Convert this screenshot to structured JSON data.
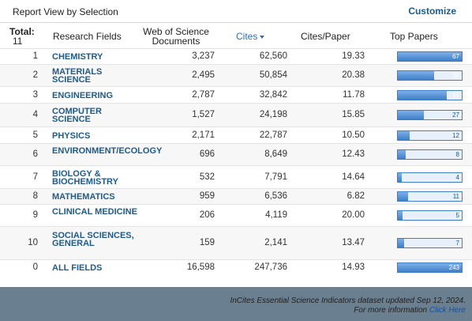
{
  "header": {
    "title": "Report View by Selection",
    "customize_label": "Customize"
  },
  "columns": {
    "total_label": "Total:",
    "total_count": "11",
    "research_fields": "Research Fields",
    "wos_documents": "Web of Science Documents",
    "cites": "Cites",
    "cites_per_paper": "Cites/Paper",
    "top_papers": "Top Papers"
  },
  "rows": [
    {
      "rank": "1",
      "field": "CHEMISTRY",
      "docs": "3,237",
      "cites": "62,560",
      "cpp": "19.33",
      "top": 67
    },
    {
      "rank": "2",
      "field": "MATERIALS SCIENCE",
      "docs": "2,495",
      "cites": "50,854",
      "cpp": "20.38",
      "top": 38
    },
    {
      "rank": "3",
      "field": "ENGINEERING",
      "docs": "2,787",
      "cites": "32,842",
      "cpp": "11.78",
      "top": 51
    },
    {
      "rank": "4",
      "field": "COMPUTER SCIENCE",
      "docs": "1,527",
      "cites": "24,198",
      "cpp": "15.85",
      "top": 27
    },
    {
      "rank": "5",
      "field": "PHYSICS",
      "docs": "2,171",
      "cites": "22,787",
      "cpp": "10.50",
      "top": 12
    },
    {
      "rank": "6",
      "field": "ENVIRONMENT/ECOLOGY",
      "docs": "696",
      "cites": "8,649",
      "cpp": "12.43",
      "top": 8
    },
    {
      "rank": "7",
      "field": "BIOLOGY & BIOCHEMISTRY",
      "docs": "532",
      "cites": "7,791",
      "cpp": "14.64",
      "top": 4
    },
    {
      "rank": "8",
      "field": "MATHEMATICS",
      "docs": "959",
      "cites": "6,536",
      "cpp": "6.82",
      "top": 11
    },
    {
      "rank": "9",
      "field": "CLINICAL MEDICINE",
      "docs": "206",
      "cites": "4,119",
      "cpp": "20.00",
      "top": 5
    },
    {
      "rank": "10",
      "field": "SOCIAL SCIENCES, GENERAL",
      "docs": "159",
      "cites": "2,141",
      "cpp": "13.47",
      "top": 7
    },
    {
      "rank": "0",
      "field": "ALL FIELDS",
      "docs": "16,598",
      "cites": "247,736",
      "cpp": "14.93",
      "top": 243
    }
  ],
  "footer": {
    "line1": "InCites Essential Science Indicators dataset updated Sep 12, 2024.",
    "line2_prefix": "For more information",
    "link": "Click Here"
  },
  "colors": {
    "accent": "#1e5a8a",
    "bar_fill": "#3f7fc7",
    "background": "#6a7f8f"
  }
}
